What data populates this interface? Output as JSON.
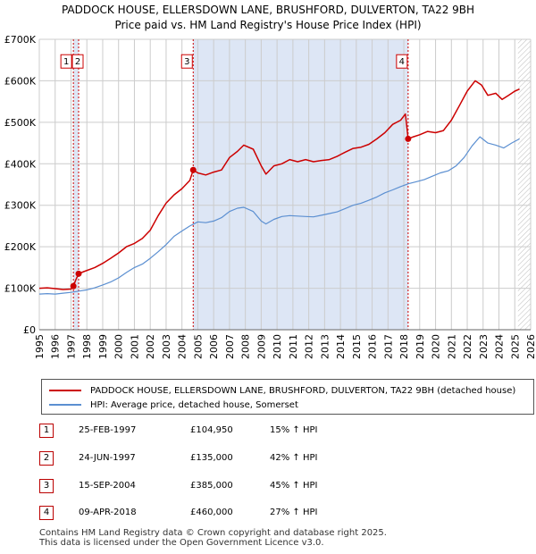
{
  "header": {
    "title_line1": "PADDOCK HOUSE, ELLERSDOWN LANE, BRUSHFORD, DULVERTON, TA22 9BH",
    "title_line2": "Price paid vs. HM Land Registry's House Price Index (HPI)"
  },
  "colors": {
    "property": "#cc0000",
    "hpi": "#5b8fd1",
    "shade": "#dde6f5",
    "grid": "#cccccc",
    "marker_border": "#cc0000"
  },
  "chart_data": {
    "type": "line",
    "title": "Price paid vs. HM Land Registry's House Price Index (HPI)",
    "xlabel": "",
    "ylabel": "",
    "xlim": [
      1995,
      2026
    ],
    "ylim": [
      0,
      700000
    ],
    "grid": true,
    "x_ticks": [
      "1995",
      "1996",
      "1997",
      "1998",
      "1999",
      "2000",
      "2001",
      "2002",
      "2003",
      "2004",
      "2005",
      "2006",
      "2007",
      "2008",
      "2009",
      "2010",
      "2011",
      "2012",
      "2013",
      "2014",
      "2015",
      "2016",
      "2017",
      "2018",
      "2019",
      "2020",
      "2021",
      "2022",
      "2023",
      "2024",
      "2025",
      "2026"
    ],
    "y_ticks": [
      {
        "value": 0,
        "label": "£0"
      },
      {
        "value": 100000,
        "label": "£100K"
      },
      {
        "value": 200000,
        "label": "£200K"
      },
      {
        "value": 300000,
        "label": "£300K"
      },
      {
        "value": 400000,
        "label": "£400K"
      },
      {
        "value": 500000,
        "label": "£500K"
      },
      {
        "value": 600000,
        "label": "£600K"
      },
      {
        "value": 700000,
        "label": "£700K"
      }
    ],
    "shaded_periods": [
      [
        1997.15,
        1997.48
      ],
      [
        2004.71,
        2018.27
      ]
    ],
    "future_start": 2025.2,
    "series": [
      {
        "name": "PADDOCK HOUSE, ELLERSDOWN LANE, BRUSHFORD, DULVERTON, TA22 9BH (detached house)",
        "color": "#cc0000",
        "x": [
          1995.0,
          1995.5,
          1996.0,
          1996.5,
          1997.0,
          1997.15,
          1997.3,
          1997.48,
          1997.8,
          1998.5,
          1999.0,
          1999.5,
          2000.0,
          2000.5,
          2001.0,
          2001.5,
          2002.0,
          2002.5,
          2003.0,
          2003.5,
          2004.0,
          2004.5,
          2004.71,
          2005.0,
          2005.5,
          2006.0,
          2006.5,
          2007.0,
          2007.5,
          2007.9,
          2008.5,
          2009.0,
          2009.3,
          2009.8,
          2010.3,
          2010.8,
          2011.3,
          2011.8,
          2012.3,
          2012.8,
          2013.3,
          2013.8,
          2014.3,
          2014.8,
          2015.3,
          2015.8,
          2016.3,
          2016.8,
          2017.3,
          2017.8,
          2018.1,
          2018.27,
          2018.6,
          2019.0,
          2019.5,
          2020.0,
          2020.5,
          2021.0,
          2021.5,
          2022.0,
          2022.5,
          2022.9,
          2023.3,
          2023.8,
          2024.2,
          2024.6,
          2025.0,
          2025.3
        ],
        "y": [
          100000,
          101000,
          99000,
          97000,
          98000,
          104950,
          120000,
          135000,
          140000,
          150000,
          160000,
          172000,
          185000,
          200000,
          208000,
          220000,
          240000,
          275000,
          305000,
          325000,
          340000,
          360000,
          385000,
          378000,
          373000,
          380000,
          385000,
          415000,
          430000,
          445000,
          435000,
          395000,
          375000,
          395000,
          400000,
          410000,
          405000,
          410000,
          405000,
          408000,
          410000,
          418000,
          428000,
          437000,
          440000,
          447000,
          460000,
          475000,
          495000,
          505000,
          520000,
          460000,
          465000,
          470000,
          478000,
          475000,
          480000,
          505000,
          540000,
          575000,
          600000,
          590000,
          565000,
          570000,
          555000,
          565000,
          575000,
          580000
        ]
      },
      {
        "name": "HPI: Average price, detached house, Somerset",
        "color": "#5b8fd1",
        "x": [
          1995.0,
          1995.5,
          1996.0,
          1996.5,
          1997.0,
          1997.5,
          1998.0,
          1998.5,
          1999.0,
          1999.5,
          2000.0,
          2000.5,
          2001.0,
          2001.5,
          2002.0,
          2002.5,
          2003.0,
          2003.5,
          2004.0,
          2004.5,
          2005.0,
          2005.5,
          2006.0,
          2006.5,
          2007.0,
          2007.5,
          2007.9,
          2008.5,
          2009.0,
          2009.3,
          2009.8,
          2010.3,
          2010.8,
          2011.3,
          2011.8,
          2012.3,
          2012.8,
          2013.3,
          2013.8,
          2014.3,
          2014.8,
          2015.3,
          2015.8,
          2016.3,
          2016.8,
          2017.3,
          2017.8,
          2018.3,
          2018.8,
          2019.3,
          2019.8,
          2020.3,
          2020.8,
          2021.3,
          2021.8,
          2022.3,
          2022.8,
          2023.3,
          2023.8,
          2024.3,
          2024.8,
          2025.3
        ],
        "y": [
          86000,
          87000,
          86000,
          88000,
          90000,
          93000,
          96000,
          101000,
          108000,
          115000,
          125000,
          138000,
          150000,
          158000,
          172000,
          188000,
          205000,
          225000,
          238000,
          250000,
          260000,
          258000,
          262000,
          270000,
          285000,
          293000,
          295000,
          285000,
          262000,
          255000,
          266000,
          273000,
          275000,
          274000,
          273000,
          272000,
          276000,
          280000,
          284000,
          292000,
          300000,
          305000,
          312000,
          320000,
          330000,
          337000,
          345000,
          352000,
          357000,
          362000,
          370000,
          378000,
          383000,
          395000,
          415000,
          443000,
          465000,
          450000,
          445000,
          438000,
          450000,
          460000
        ]
      }
    ],
    "annotations": [
      {
        "id": "1",
        "x": 1997.15,
        "price": 104950
      },
      {
        "id": "2",
        "x": 1997.48,
        "price": 135000
      },
      {
        "id": "3",
        "x": 2004.71,
        "price": 385000
      },
      {
        "id": "4",
        "x": 2018.27,
        "price": 460000
      }
    ]
  },
  "legend": {
    "property_label": "PADDOCK HOUSE, ELLERSDOWN LANE, BRUSHFORD, DULVERTON, TA22 9BH (detached house)",
    "hpi_label": "HPI: Average price, detached house, Somerset"
  },
  "transactions": [
    {
      "num": "1",
      "date": "25-FEB-1997",
      "price": "£104,950",
      "hpi": "15% ↑ HPI"
    },
    {
      "num": "2",
      "date": "24-JUN-1997",
      "price": "£135,000",
      "hpi": "42% ↑ HPI"
    },
    {
      "num": "3",
      "date": "15-SEP-2004",
      "price": "£385,000",
      "hpi": "45% ↑ HPI"
    },
    {
      "num": "4",
      "date": "09-APR-2018",
      "price": "£460,000",
      "hpi": "27% ↑ HPI"
    }
  ],
  "footer": {
    "line1": "Contains HM Land Registry data © Crown copyright and database right 2025.",
    "line2": "This data is licensed under the Open Government Licence v3.0."
  }
}
